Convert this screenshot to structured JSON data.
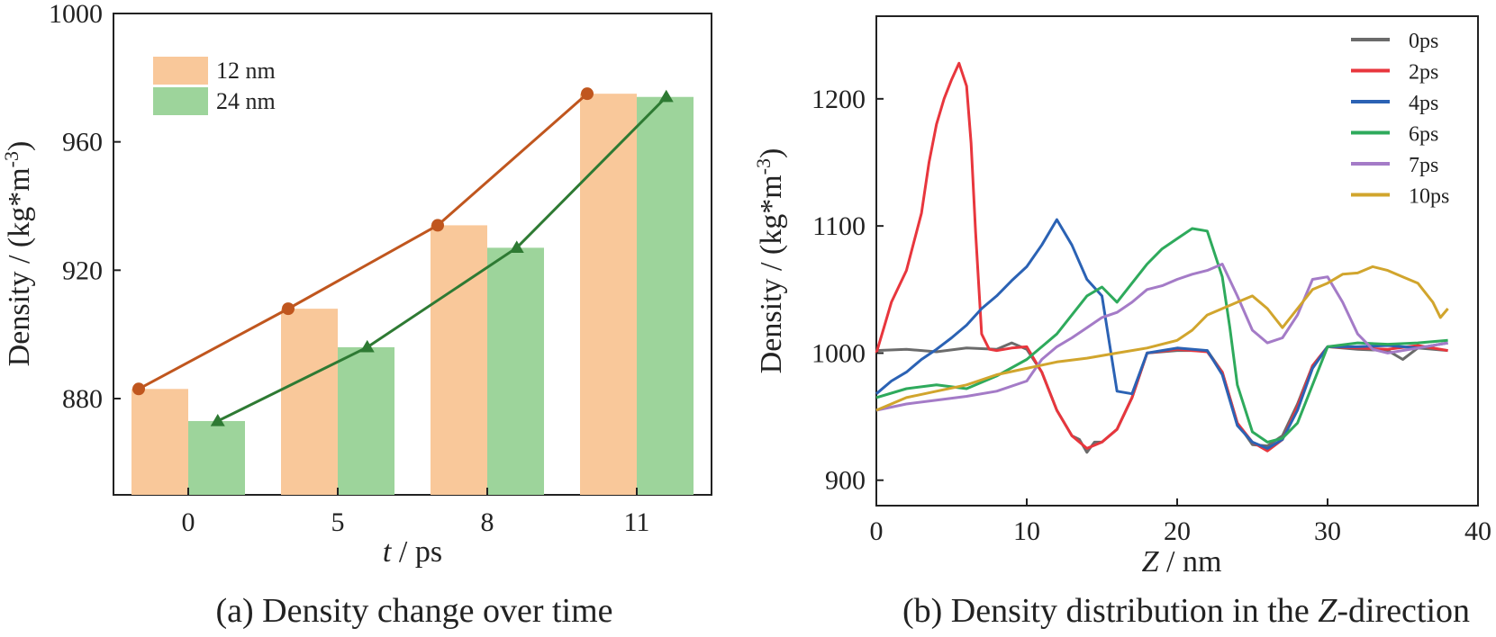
{
  "chart_data": [
    {
      "id": "a",
      "type": "bar",
      "caption": "(a) Density change over time",
      "xlabel_var": "t",
      "xlabel_unit": " / ps",
      "ylabel": "Density / (kg*m",
      "ylabel_sup": "-3",
      "ylabel_close": ")",
      "ylim": [
        850,
        1000
      ],
      "yticks": [
        880,
        920,
        960,
        1000
      ],
      "categories": [
        "0",
        "5",
        "8",
        "11"
      ],
      "series": [
        {
          "name": "12 nm",
          "values": [
            883,
            908,
            934,
            975
          ],
          "bar_color": "#f9c89a",
          "line_color": "#c0561e",
          "marker": "circle"
        },
        {
          "name": "24 nm",
          "values": [
            873,
            896,
            927,
            974
          ],
          "bar_color": "#9dd49b",
          "line_color": "#2e7a33",
          "marker": "triangle"
        }
      ]
    },
    {
      "id": "b",
      "type": "line",
      "caption_prefix": "(b) Density distribution in the ",
      "caption_var": "Z",
      "caption_suffix": "-direction",
      "xlabel_var": "Z",
      "xlabel_unit": " / nm",
      "ylabel": "Density / (kg*m",
      "ylabel_sup": "-3",
      "ylabel_close": ")",
      "xlim": [
        0,
        40
      ],
      "ylim": [
        880,
        1265
      ],
      "xticks": [
        0,
        10,
        20,
        30,
        40
      ],
      "yticks": [
        900,
        1000,
        1100,
        1200
      ],
      "series": [
        {
          "name": "0ps",
          "color": "#6b6b6b",
          "x": [
            0,
            2,
            4,
            6,
            8,
            9,
            10,
            11,
            12,
            13,
            13.5,
            14,
            14.5,
            15,
            16,
            17,
            18,
            20,
            22,
            23,
            24,
            25,
            26,
            27,
            28,
            29,
            30,
            32,
            34,
            35,
            36,
            38
          ],
          "y": [
            1002,
            1003,
            1001,
            1004,
            1003,
            1008,
            1003,
            985,
            955,
            935,
            932,
            922,
            930,
            930,
            940,
            965,
            1000,
            1002,
            1002,
            985,
            945,
            928,
            927,
            935,
            960,
            990,
            1005,
            1003,
            1002,
            995,
            1004,
            1002
          ]
        },
        {
          "name": "2ps",
          "color": "#e8363d",
          "x": [
            0,
            0.5,
            1,
            2,
            3,
            3.5,
            4,
            4.5,
            5,
            5.5,
            6,
            6.3,
            6.6,
            7,
            7.5,
            8,
            9,
            10,
            11,
            12,
            13,
            14,
            15,
            16,
            17,
            18,
            20,
            22,
            23,
            24,
            25,
            26,
            27,
            28,
            29,
            30,
            32,
            34,
            36,
            38
          ],
          "y": [
            1000,
            1020,
            1040,
            1065,
            1110,
            1150,
            1180,
            1200,
            1215,
            1228,
            1210,
            1165,
            1095,
            1015,
            1003,
            1002,
            1004,
            1005,
            985,
            955,
            935,
            925,
            930,
            940,
            965,
            1000,
            1003,
            1001,
            985,
            945,
            930,
            923,
            932,
            958,
            990,
            1005,
            1004,
            1003,
            1006,
            1002
          ]
        },
        {
          "name": "4ps",
          "color": "#2b62b4",
          "x": [
            0,
            1,
            2,
            3,
            4,
            5,
            6,
            7,
            8,
            9,
            10,
            11,
            12,
            13,
            14,
            15,
            16,
            17,
            18,
            20,
            22,
            23,
            24,
            25,
            26,
            27,
            28,
            29,
            30,
            32,
            34,
            36,
            38
          ],
          "y": [
            968,
            978,
            985,
            995,
            1003,
            1012,
            1022,
            1035,
            1045,
            1057,
            1068,
            1085,
            1105,
            1085,
            1058,
            1045,
            970,
            968,
            1000,
            1004,
            1002,
            983,
            943,
            930,
            925,
            932,
            955,
            988,
            1005,
            1005,
            1006,
            1004,
            1008
          ]
        },
        {
          "name": "6ps",
          "color": "#2eaa5c",
          "x": [
            0,
            2,
            4,
            6,
            8,
            10,
            11,
            12,
            13,
            14,
            15,
            16,
            17,
            18,
            19,
            20,
            21,
            22,
            23,
            23.5,
            24,
            25,
            26,
            27,
            28,
            29,
            30,
            32,
            34,
            36,
            38
          ],
          "y": [
            965,
            972,
            975,
            972,
            982,
            995,
            1005,
            1015,
            1030,
            1045,
            1052,
            1040,
            1055,
            1070,
            1082,
            1090,
            1098,
            1096,
            1060,
            1020,
            975,
            938,
            930,
            933,
            945,
            975,
            1005,
            1008,
            1007,
            1008,
            1010
          ]
        },
        {
          "name": "7ps",
          "color": "#a47bc7",
          "x": [
            0,
            2,
            4,
            6,
            8,
            10,
            11,
            12,
            13,
            14,
            15,
            16,
            17,
            18,
            19,
            20,
            21,
            22,
            23,
            24,
            25,
            26,
            27,
            28,
            29,
            30,
            31,
            32,
            33,
            34,
            36,
            38
          ],
          "y": [
            955,
            960,
            963,
            966,
            970,
            978,
            995,
            1005,
            1012,
            1020,
            1028,
            1032,
            1040,
            1050,
            1053,
            1058,
            1062,
            1065,
            1070,
            1045,
            1018,
            1008,
            1012,
            1030,
            1058,
            1060,
            1040,
            1015,
            1003,
            1000,
            1004,
            1008
          ]
        },
        {
          "name": "10ps",
          "color": "#d1a52d",
          "x": [
            0,
            2,
            4,
            6,
            8,
            10,
            12,
            14,
            16,
            18,
            20,
            21,
            22,
            23,
            24,
            25,
            26,
            27,
            28,
            29,
            30,
            31,
            32,
            33,
            34,
            35,
            36,
            37,
            37.5,
            38
          ],
          "y": [
            955,
            965,
            970,
            975,
            983,
            988,
            993,
            996,
            1000,
            1004,
            1010,
            1018,
            1030,
            1035,
            1040,
            1045,
            1035,
            1020,
            1035,
            1050,
            1055,
            1062,
            1063,
            1068,
            1065,
            1060,
            1055,
            1040,
            1028,
            1035
          ]
        }
      ]
    }
  ]
}
